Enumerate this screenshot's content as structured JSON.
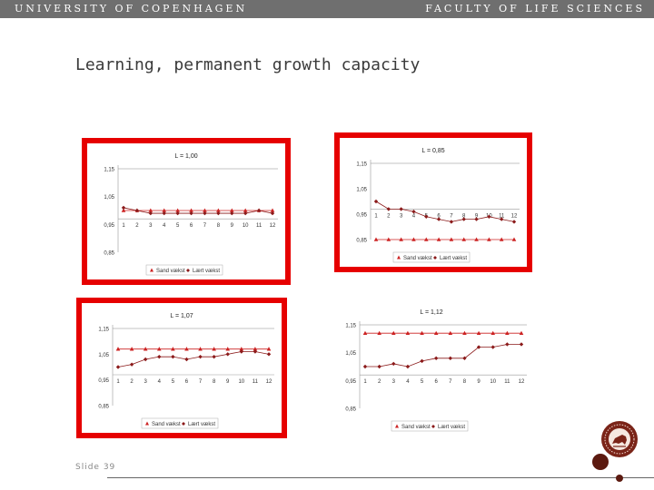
{
  "header": {
    "university": "UNIVERSITY OF COPENHAGEN",
    "faculty": "FACULTY OF LIFE SCIENCES"
  },
  "slide": {
    "title": "Learning, permanent growth capacity",
    "number": "Slide 39"
  },
  "colors": {
    "frame": "#e60000",
    "series_1": "#cc2222",
    "series_2": "#8b1a1a",
    "header_bar": "#6f6f6f",
    "brand": "#5c1a10"
  },
  "logo": {
    "icon": "university-seal-icon"
  },
  "chart_data": [
    {
      "type": "line",
      "title": "L = 1,00",
      "framed": true,
      "categories": [
        "1",
        "2",
        "3",
        "4",
        "5",
        "6",
        "7",
        "8",
        "9",
        "10",
        "11",
        "12"
      ],
      "yticks": [
        "1,15",
        "1,05",
        "0,95",
        "0,85"
      ],
      "ylim": [
        0.85,
        1.15
      ],
      "legend": [
        "Sand vækst",
        "Lært vækst"
      ],
      "series": [
        {
          "marker": "triangle",
          "values": [
            1.0,
            1.0,
            1.0,
            1.0,
            1.0,
            1.0,
            1.0,
            1.0,
            1.0,
            1.0,
            1.0,
            1.0
          ]
        },
        {
          "marker": "diamond",
          "values": [
            1.01,
            1.0,
            0.99,
            0.99,
            0.99,
            0.99,
            0.99,
            0.99,
            0.99,
            0.99,
            1.0,
            0.99
          ]
        }
      ]
    },
    {
      "type": "line",
      "title": "L = 0,85",
      "framed": true,
      "categories": [
        "1",
        "2",
        "3",
        "4",
        "5",
        "6",
        "7",
        "8",
        "9",
        "10",
        "11",
        "12"
      ],
      "yticks": [
        "1,15",
        "1,05",
        "0,95",
        "0,85"
      ],
      "ylim": [
        0.85,
        1.15
      ],
      "legend": [
        "Sand vækst",
        "Lært vækst"
      ],
      "series": [
        {
          "marker": "triangle",
          "values": [
            0.85,
            0.85,
            0.85,
            0.85,
            0.85,
            0.85,
            0.85,
            0.85,
            0.85,
            0.85,
            0.85,
            0.85
          ]
        },
        {
          "marker": "diamond",
          "values": [
            1.0,
            0.97,
            0.97,
            0.96,
            0.94,
            0.93,
            0.92,
            0.93,
            0.93,
            0.94,
            0.93,
            0.92
          ]
        }
      ]
    },
    {
      "type": "line",
      "title": "L = 1,07",
      "framed": true,
      "categories": [
        "1",
        "2",
        "3",
        "4",
        "5",
        "6",
        "7",
        "8",
        "9",
        "10",
        "11",
        "12"
      ],
      "yticks": [
        "1,15",
        "1,05",
        "0,95",
        "0,85"
      ],
      "ylim": [
        0.85,
        1.15
      ],
      "legend": [
        "Sand vækst",
        "Lært vækst"
      ],
      "series": [
        {
          "marker": "triangle",
          "values": [
            1.07,
            1.07,
            1.07,
            1.07,
            1.07,
            1.07,
            1.07,
            1.07,
            1.07,
            1.07,
            1.07,
            1.07
          ]
        },
        {
          "marker": "diamond",
          "values": [
            1.0,
            1.01,
            1.03,
            1.04,
            1.04,
            1.03,
            1.04,
            1.04,
            1.05,
            1.06,
            1.06,
            1.05
          ]
        }
      ]
    },
    {
      "type": "line",
      "title": "L = 1,12",
      "framed": false,
      "categories": [
        "1",
        "2",
        "3",
        "4",
        "5",
        "6",
        "7",
        "8",
        "9",
        "10",
        "11",
        "12"
      ],
      "yticks": [
        "1,15",
        "1,05",
        "0,95",
        "0,85"
      ],
      "ylim": [
        0.85,
        1.15
      ],
      "legend": [
        "Sand vækst",
        "Lært vækst"
      ],
      "series": [
        {
          "marker": "triangle",
          "values": [
            1.12,
            1.12,
            1.12,
            1.12,
            1.12,
            1.12,
            1.12,
            1.12,
            1.12,
            1.12,
            1.12,
            1.12
          ]
        },
        {
          "marker": "diamond",
          "values": [
            1.0,
            1.0,
            1.01,
            1.0,
            1.02,
            1.03,
            1.03,
            1.03,
            1.07,
            1.07,
            1.08,
            1.08
          ]
        }
      ]
    }
  ]
}
